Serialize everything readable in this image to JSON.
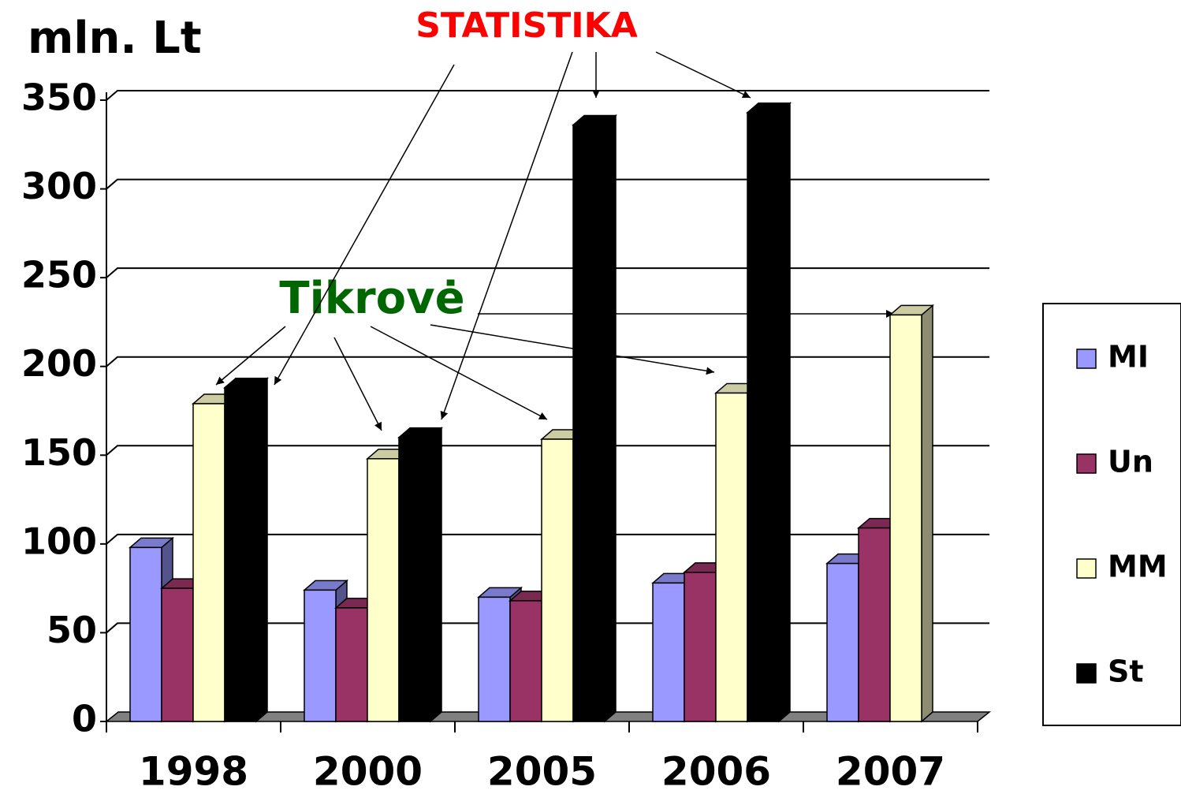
{
  "chart_data": {
    "type": "bar3d",
    "y_label": "mln. Lt",
    "annotations": [
      "STATISTIKA",
      "Tikrovė"
    ],
    "categories": [
      "1998",
      "2000",
      "2005",
      "2006",
      "2007"
    ],
    "series": [
      {
        "name": "MI",
        "color": "#9999ff",
        "values": [
          98,
          74,
          70,
          78,
          89
        ]
      },
      {
        "name": "Un",
        "color": "#993366",
        "values": [
          75,
          64,
          68,
          84,
          109
        ]
      },
      {
        "name": "MM",
        "color": "#ffffcc",
        "values": [
          179,
          148,
          159,
          185,
          229
        ]
      },
      {
        "name": "St",
        "color": "#000000",
        "values": [
          188,
          160,
          336,
          343,
          null
        ]
      }
    ],
    "ylim": [
      0,
      350
    ],
    "yticks": [
      0,
      50,
      100,
      150,
      200,
      250,
      300,
      350
    ],
    "grid": true,
    "legend": "right"
  }
}
